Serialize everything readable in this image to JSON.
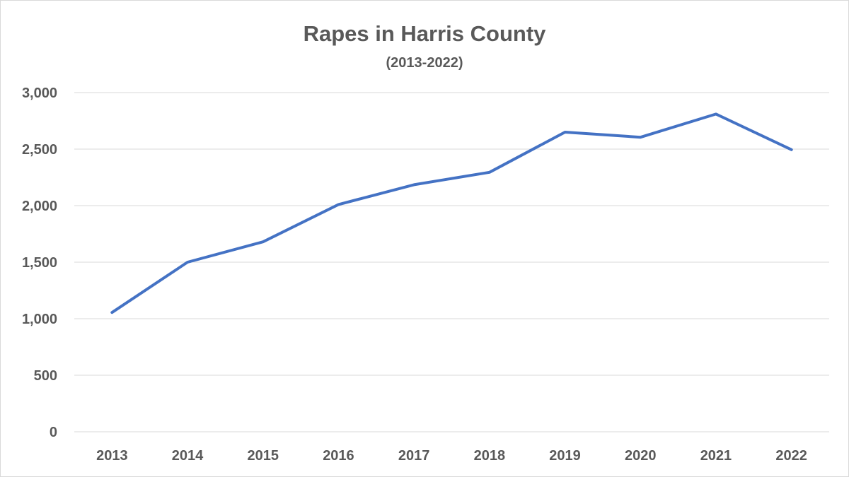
{
  "chart_data": {
    "type": "line",
    "title": "Rapes in Harris County",
    "subtitle": "(2013-2022)",
    "xlabel": "",
    "ylabel": "",
    "categories": [
      "2013",
      "2014",
      "2015",
      "2016",
      "2017",
      "2018",
      "2019",
      "2020",
      "2021",
      "2022"
    ],
    "series": [
      {
        "values": [
          1055,
          1500,
          1680,
          2010,
          2185,
          2295,
          2650,
          2605,
          2810,
          2495
        ],
        "color": "#4472c4"
      }
    ],
    "ylim": [
      0,
      3000
    ],
    "yticks": [
      0,
      500,
      1000,
      1500,
      2000,
      2500,
      3000
    ],
    "ytick_labels": [
      "0",
      "500",
      "1,000",
      "1,500",
      "2,000",
      "2,500",
      "3,000"
    ],
    "grid": true,
    "legend": "none"
  }
}
